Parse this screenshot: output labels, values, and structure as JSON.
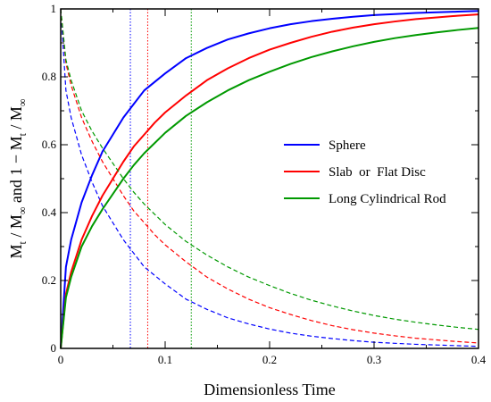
{
  "chart_data": {
    "type": "line",
    "title": "",
    "xlabel": "Dimensionless Time",
    "ylabel": "",
    "ylabel_parts": {
      "lead": "M",
      "sub_t": "t",
      "sep": " / M",
      "sub_inf": "∞",
      "and": "   and   ",
      "one_minus": "1 − M"
    },
    "xlim": [
      0,
      0.4
    ],
    "ylim": [
      0,
      1
    ],
    "x_ticks": [
      0,
      0.1,
      0.2,
      0.3,
      0.4
    ],
    "x_tick_labels": [
      "0",
      "0.1",
      "0.2",
      "0.3",
      "0.4"
    ],
    "y_ticks": [
      0,
      0.2,
      0.4,
      0.6,
      0.8,
      1
    ],
    "y_tick_labels": [
      "0",
      "0.2",
      "0.4",
      "0.6",
      "0.8",
      "1"
    ],
    "grid": false,
    "legend_position": "right-middle",
    "x": [
      0,
      0.005,
      0.01,
      0.02,
      0.03,
      0.04,
      0.05,
      0.06,
      0.07,
      0.08,
      0.09,
      0.1,
      0.12,
      0.14,
      0.16,
      0.18,
      0.2,
      0.22,
      0.24,
      0.26,
      0.28,
      0.3,
      0.32,
      0.34,
      0.36,
      0.38,
      0.4
    ],
    "series": [
      {
        "name": "Sphere",
        "color": "#0000ff",
        "style": "solid",
        "values": [
          0,
          0.24,
          0.32,
          0.43,
          0.51,
          0.58,
          0.63,
          0.68,
          0.72,
          0.76,
          0.785,
          0.81,
          0.855,
          0.885,
          0.91,
          0.928,
          0.943,
          0.955,
          0.964,
          0.971,
          0.977,
          0.982,
          0.985,
          0.988,
          0.99,
          0.992,
          0.994
        ]
      },
      {
        "name": "Sphere",
        "color": "#0000ff",
        "style": "dashed",
        "values": [
          1,
          0.76,
          0.68,
          0.57,
          0.49,
          0.42,
          0.37,
          0.32,
          0.28,
          0.24,
          0.215,
          0.19,
          0.145,
          0.115,
          0.09,
          0.072,
          0.057,
          0.045,
          0.036,
          0.029,
          0.023,
          0.018,
          0.015,
          0.012,
          0.01,
          0.008,
          0.006
        ]
      },
      {
        "name": "Slab  or  Flat Disc",
        "color": "#ff0000",
        "style": "solid",
        "values": [
          0,
          0.16,
          0.225,
          0.32,
          0.39,
          0.45,
          0.5,
          0.55,
          0.595,
          0.63,
          0.665,
          0.695,
          0.745,
          0.79,
          0.825,
          0.855,
          0.88,
          0.9,
          0.918,
          0.933,
          0.945,
          0.955,
          0.963,
          0.97,
          0.975,
          0.98,
          0.984
        ]
      },
      {
        "name": "Slab  or  Flat Disc",
        "color": "#ff0000",
        "style": "dashed",
        "values": [
          1,
          0.84,
          0.775,
          0.68,
          0.61,
          0.55,
          0.5,
          0.45,
          0.405,
          0.37,
          0.335,
          0.305,
          0.255,
          0.21,
          0.175,
          0.145,
          0.12,
          0.1,
          0.082,
          0.067,
          0.055,
          0.045,
          0.037,
          0.03,
          0.025,
          0.02,
          0.016
        ]
      },
      {
        "name": "Long Cylindrical Rod",
        "color": "#009900",
        "style": "solid",
        "values": [
          0,
          0.15,
          0.21,
          0.3,
          0.36,
          0.41,
          0.455,
          0.5,
          0.54,
          0.575,
          0.605,
          0.635,
          0.685,
          0.725,
          0.76,
          0.79,
          0.815,
          0.838,
          0.858,
          0.875,
          0.89,
          0.903,
          0.914,
          0.923,
          0.931,
          0.938,
          0.944
        ]
      },
      {
        "name": "Long Cylindrical Rod",
        "color": "#009900",
        "style": "dashed",
        "values": [
          1,
          0.85,
          0.79,
          0.7,
          0.64,
          0.59,
          0.545,
          0.5,
          0.46,
          0.425,
          0.395,
          0.365,
          0.315,
          0.275,
          0.24,
          0.21,
          0.185,
          0.162,
          0.142,
          0.125,
          0.11,
          0.097,
          0.086,
          0.077,
          0.069,
          0.062,
          0.056
        ]
      }
    ],
    "vertical_lines": [
      {
        "x": 0.0667,
        "color": "#0000ff",
        "style": "dotted"
      },
      {
        "x": 0.0833,
        "color": "#ff0000",
        "style": "dotted"
      },
      {
        "x": 0.125,
        "color": "#009900",
        "style": "dotted"
      }
    ],
    "legend": [
      {
        "label": "Sphere",
        "color": "#0000ff"
      },
      {
        "label": "Slab  or  Flat Disc",
        "color": "#ff0000"
      },
      {
        "label": "Long Cylindrical Rod",
        "color": "#009900"
      }
    ]
  }
}
